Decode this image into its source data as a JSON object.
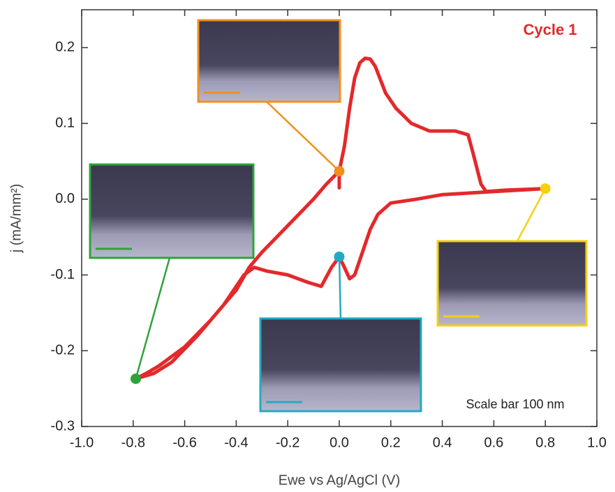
{
  "chart_data": {
    "type": "line",
    "xlabel": "Ewe vs Ag/AgCl (V)",
    "ylabel": "j (mA/mm²)",
    "annotations": [
      "Cycle 1",
      "Scale bar 100 nm"
    ],
    "color": "#e3292b",
    "x": [
      0.0,
      0.0,
      0.02,
      0.04,
      0.06,
      0.08,
      0.1,
      0.12,
      0.14,
      0.18,
      0.22,
      0.28,
      0.35,
      0.45,
      0.5,
      0.52,
      0.55,
      0.57,
      0.65,
      0.8,
      0.7,
      0.6,
      0.4,
      0.3,
      0.2,
      0.15,
      0.12,
      0.08,
      0.06,
      0.04,
      0.02,
      0.0,
      -0.03,
      -0.07,
      -0.12,
      -0.2,
      -0.28,
      -0.33,
      -0.37,
      -0.45,
      -0.55,
      -0.65,
      -0.72,
      -0.79,
      -0.75,
      -0.7,
      -0.6,
      -0.5,
      -0.4,
      -0.35,
      -0.3,
      -0.2,
      -0.1,
      -0.05,
      0.0
    ],
    "values": [
      0.015,
      0.037,
      0.07,
      0.12,
      0.16,
      0.18,
      0.186,
      0.185,
      0.175,
      0.14,
      0.12,
      0.1,
      0.09,
      0.09,
      0.085,
      0.06,
      0.02,
      0.01,
      0.012,
      0.014,
      0.012,
      0.01,
      0.006,
      0.0,
      -0.005,
      -0.02,
      -0.04,
      -0.08,
      -0.1,
      -0.105,
      -0.09,
      -0.076,
      -0.09,
      -0.115,
      -0.11,
      -0.1,
      -0.095,
      -0.09,
      -0.1,
      -0.14,
      -0.18,
      -0.215,
      -0.23,
      -0.237,
      -0.23,
      -0.22,
      -0.195,
      -0.16,
      -0.12,
      -0.09,
      -0.07,
      -0.035,
      0.0,
      0.02,
      0.037
    ],
    "markers": [
      {
        "x": 0.0,
        "y": 0.037,
        "color": "#f0901e"
      },
      {
        "x": -0.79,
        "y": -0.237,
        "color": "#2ea33a"
      },
      {
        "x": 0.0,
        "y": -0.076,
        "color": "#24a9c2"
      },
      {
        "x": 0.8,
        "y": 0.014,
        "color": "#f5d010"
      }
    ],
    "xlim": [
      -1.0,
      1.0
    ],
    "ylim": [
      -0.3,
      0.25
    ],
    "xticks": [
      {
        "value": -1.0,
        "label": "-1.0"
      },
      -0.8,
      -0.6,
      -0.4,
      -0.2,
      {
        "value": 0,
        "label": "0.0"
      },
      0.2,
      0.4,
      0.6,
      0.8,
      {
        "value": 1.0,
        "label": "1.0"
      }
    ],
    "yticks": [
      -0.3,
      -0.2,
      -0.1,
      {
        "value": 0,
        "label": "0.0"
      },
      0.1,
      0.2
    ]
  }
}
